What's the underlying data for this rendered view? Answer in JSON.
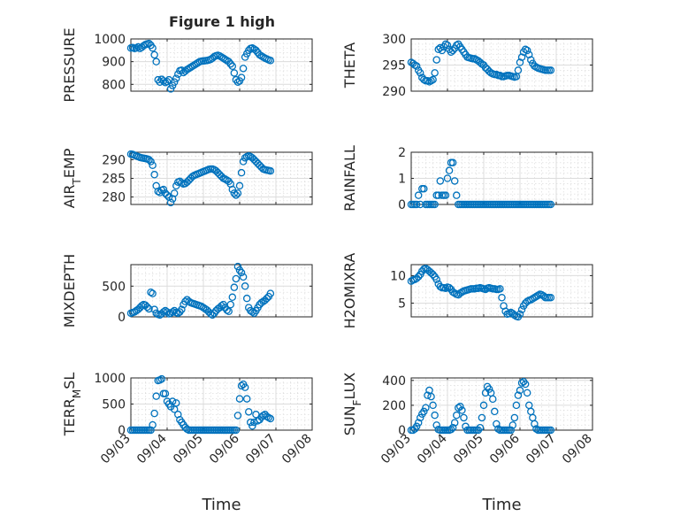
{
  "title": "Figure 1 high",
  "chart_data": [
    {
      "type": "scatter",
      "ylabel": "PRESSURE",
      "ylim": [
        770,
        1000
      ],
      "yticks": [
        800,
        900,
        1000
      ],
      "xlim": [
        0,
        5
      ],
      "grid": "major+minor",
      "marker": "circle",
      "x": [
        0.0,
        0.05,
        0.1,
        0.15,
        0.2,
        0.25,
        0.3,
        0.35,
        0.4,
        0.45,
        0.5,
        0.55,
        0.6,
        0.65,
        0.7,
        0.75,
        0.8,
        0.85,
        0.9,
        0.95,
        1.0,
        1.05,
        1.1,
        1.15,
        1.2,
        1.25,
        1.3,
        1.35,
        1.4,
        1.45,
        1.5,
        1.55,
        1.6,
        1.65,
        1.7,
        1.75,
        1.8,
        1.85,
        1.9,
        1.95,
        2.0,
        2.05,
        2.1,
        2.15,
        2.2,
        2.25,
        2.3,
        2.35,
        2.4,
        2.45,
        2.5,
        2.55,
        2.6,
        2.65,
        2.7,
        2.75,
        2.8,
        2.85,
        2.9,
        2.95,
        3.0,
        3.05,
        3.1,
        3.15,
        3.2,
        3.25,
        3.3,
        3.35,
        3.4,
        3.45,
        3.5,
        3.55,
        3.6,
        3.65,
        3.7,
        3.75,
        3.8,
        3.85
      ],
      "y": [
        960,
        962,
        958,
        960,
        965,
        958,
        963,
        970,
        975,
        978,
        980,
        972,
        960,
        930,
        900,
        820,
        810,
        822,
        815,
        808,
        812,
        820,
        780,
        795,
        810,
        826,
        845,
        860,
        862,
        852,
        858,
        865,
        870,
        875,
        880,
        885,
        890,
        895,
        900,
        902,
        903,
        904,
        905,
        907,
        910,
        915,
        922,
        926,
        928,
        925,
        920,
        915,
        910,
        905,
        900,
        890,
        880,
        850,
        820,
        810,
        815,
        830,
        870,
        920,
        935,
        950,
        958,
        960,
        955,
        950,
        940,
        930,
        925,
        920,
        915,
        912,
        908,
        905
      ]
    },
    {
      "type": "scatter",
      "ylabel": "THETA",
      "ylim": [
        290,
        300
      ],
      "yticks": [
        290,
        295,
        300
      ],
      "xlim": [
        0,
        5
      ],
      "grid": "major+minor",
      "marker": "circle",
      "x": [
        0.0,
        0.05,
        0.1,
        0.15,
        0.2,
        0.25,
        0.3,
        0.35,
        0.4,
        0.45,
        0.5,
        0.55,
        0.6,
        0.65,
        0.7,
        0.75,
        0.8,
        0.85,
        0.9,
        0.95,
        1.0,
        1.05,
        1.1,
        1.15,
        1.2,
        1.25,
        1.3,
        1.35,
        1.4,
        1.45,
        1.5,
        1.55,
        1.6,
        1.65,
        1.7,
        1.75,
        1.8,
        1.85,
        1.9,
        1.95,
        2.0,
        2.05,
        2.1,
        2.15,
        2.2,
        2.25,
        2.3,
        2.35,
        2.4,
        2.45,
        2.5,
        2.55,
        2.6,
        2.65,
        2.7,
        2.75,
        2.8,
        2.85,
        2.9,
        2.95,
        3.0,
        3.05,
        3.1,
        3.15,
        3.2,
        3.25,
        3.3,
        3.35,
        3.4,
        3.45,
        3.5,
        3.55,
        3.6,
        3.65,
        3.7,
        3.75,
        3.8,
        3.85
      ],
      "y": [
        295.5,
        295.3,
        295.0,
        294.8,
        294.0,
        293.5,
        292.6,
        292.2,
        292.0,
        292.0,
        291.8,
        292.0,
        292.2,
        293.5,
        296.0,
        298.0,
        298.3,
        297.8,
        298.5,
        299.0,
        298.8,
        298.0,
        297.5,
        297.8,
        298.2,
        298.8,
        299.0,
        298.5,
        298.0,
        297.5,
        297.0,
        296.5,
        296.4,
        296.3,
        296.2,
        296.2,
        296.0,
        295.8,
        295.5,
        295.2,
        295.0,
        294.5,
        294.2,
        293.8,
        293.5,
        293.3,
        293.2,
        293.2,
        293.0,
        293.0,
        292.8,
        292.8,
        292.9,
        293.0,
        293.0,
        292.9,
        292.8,
        292.7,
        292.8,
        294.0,
        295.5,
        296.5,
        297.5,
        298.0,
        297.8,
        297.0,
        296.0,
        295.3,
        294.8,
        294.6,
        294.4,
        294.3,
        294.2,
        294.1,
        294.0,
        294.0,
        294.0,
        294.0
      ]
    },
    {
      "type": "scatter",
      "ylabel_main": "AIR",
      "ylabel_sub": "T",
      "ylabel_rest": "EMP",
      "ylim": [
        278,
        292
      ],
      "yticks": [
        280,
        285,
        290
      ],
      "xlim": [
        0,
        5
      ],
      "grid": "major+minor",
      "marker": "circle",
      "x": [
        0.0,
        0.05,
        0.1,
        0.15,
        0.2,
        0.25,
        0.3,
        0.35,
        0.4,
        0.45,
        0.5,
        0.55,
        0.6,
        0.65,
        0.7,
        0.75,
        0.8,
        0.85,
        0.9,
        0.95,
        1.0,
        1.05,
        1.1,
        1.15,
        1.2,
        1.25,
        1.3,
        1.35,
        1.4,
        1.45,
        1.5,
        1.55,
        1.6,
        1.65,
        1.7,
        1.75,
        1.8,
        1.85,
        1.9,
        1.95,
        2.0,
        2.05,
        2.1,
        2.15,
        2.2,
        2.25,
        2.3,
        2.35,
        2.4,
        2.45,
        2.5,
        2.55,
        2.6,
        2.65,
        2.7,
        2.75,
        2.8,
        2.85,
        2.9,
        2.95,
        3.0,
        3.05,
        3.1,
        3.15,
        3.2,
        3.25,
        3.3,
        3.35,
        3.4,
        3.45,
        3.5,
        3.55,
        3.6,
        3.65,
        3.7,
        3.75,
        3.8,
        3.85
      ],
      "y": [
        291.5,
        291.4,
        291.2,
        291.0,
        290.8,
        290.6,
        290.5,
        290.4,
        290.3,
        290.2,
        290.0,
        289.5,
        288.5,
        286.0,
        283.0,
        281.5,
        281.2,
        281.8,
        282.0,
        281.0,
        280.5,
        280.0,
        278.5,
        279.5,
        281.0,
        283.0,
        284.0,
        284.2,
        283.8,
        283.5,
        283.6,
        284.0,
        284.5,
        285.0,
        285.5,
        285.8,
        286.0,
        286.2,
        286.4,
        286.6,
        286.8,
        287.0,
        287.2,
        287.4,
        287.5,
        287.5,
        287.3,
        287.0,
        286.5,
        286.0,
        285.5,
        285.0,
        284.8,
        284.5,
        284.2,
        283.5,
        282.0,
        281.0,
        280.5,
        281.0,
        283.0,
        286.5,
        289.5,
        290.5,
        290.8,
        291.0,
        290.8,
        290.5,
        290.0,
        289.5,
        289.0,
        288.5,
        288.0,
        287.5,
        287.3,
        287.2,
        287.1,
        287.0
      ]
    },
    {
      "type": "scatter",
      "ylabel": "RAINFALL",
      "ylim": [
        0,
        2
      ],
      "yticks": [
        0,
        1,
        2
      ],
      "xlim": [
        0,
        5
      ],
      "grid": "major+minor",
      "marker": "circle",
      "x": [
        0.0,
        0.05,
        0.1,
        0.15,
        0.2,
        0.25,
        0.3,
        0.35,
        0.4,
        0.45,
        0.5,
        0.55,
        0.6,
        0.65,
        0.7,
        0.75,
        0.8,
        0.85,
        0.9,
        0.95,
        1.0,
        1.05,
        1.1,
        1.15,
        1.2,
        1.25,
        1.3,
        1.35,
        1.4,
        1.45,
        1.5,
        1.55,
        1.6,
        1.65,
        1.7,
        1.75,
        1.8,
        1.85,
        1.9,
        1.95,
        2.0,
        2.05,
        2.1,
        2.15,
        2.2,
        2.25,
        2.3,
        2.35,
        2.4,
        2.45,
        2.5,
        2.55,
        2.6,
        2.65,
        2.7,
        2.75,
        2.8,
        2.85,
        2.9,
        2.95,
        3.0,
        3.05,
        3.1,
        3.15,
        3.2,
        3.25,
        3.3,
        3.35,
        3.4,
        3.45,
        3.5,
        3.55,
        3.6,
        3.65,
        3.7,
        3.75,
        3.8,
        3.85
      ],
      "y": [
        0,
        0,
        0,
        0,
        0.35,
        0,
        0.6,
        0.6,
        0,
        0,
        0,
        0,
        0,
        0,
        0.35,
        0.35,
        0.9,
        0.35,
        0.35,
        0.35,
        1.0,
        1.3,
        1.6,
        1.6,
        0.9,
        0.35,
        0,
        0,
        0,
        0,
        0,
        0,
        0,
        0,
        0,
        0,
        0,
        0,
        0,
        0,
        0,
        0,
        0,
        0,
        0,
        0,
        0,
        0,
        0,
        0,
        0,
        0,
        0,
        0,
        0,
        0,
        0,
        0,
        0,
        0,
        0,
        0,
        0,
        0,
        0,
        0,
        0,
        0,
        0,
        0,
        0,
        0,
        0,
        0,
        0,
        0,
        0,
        0
      ]
    },
    {
      "type": "scatter",
      "ylabel": "MIXDEPTH",
      "ylim": [
        0,
        850
      ],
      "yticks": [
        0,
        500
      ],
      "xlim": [
        0,
        5
      ],
      "grid": "major+minor",
      "marker": "circle",
      "x": [
        0.0,
        0.05,
        0.1,
        0.15,
        0.2,
        0.25,
        0.3,
        0.35,
        0.4,
        0.45,
        0.5,
        0.55,
        0.6,
        0.65,
        0.7,
        0.75,
        0.8,
        0.85,
        0.9,
        0.95,
        1.0,
        1.05,
        1.1,
        1.15,
        1.2,
        1.25,
        1.3,
        1.35,
        1.4,
        1.45,
        1.5,
        1.55,
        1.6,
        1.65,
        1.7,
        1.75,
        1.8,
        1.85,
        1.9,
        1.95,
        2.0,
        2.05,
        2.1,
        2.15,
        2.2,
        2.25,
        2.3,
        2.35,
        2.4,
        2.45,
        2.5,
        2.55,
        2.6,
        2.65,
        2.7,
        2.75,
        2.8,
        2.85,
        2.9,
        2.95,
        3.0,
        3.05,
        3.1,
        3.15,
        3.2,
        3.25,
        3.3,
        3.35,
        3.4,
        3.45,
        3.5,
        3.55,
        3.6,
        3.65,
        3.7,
        3.75,
        3.8,
        3.85
      ],
      "y": [
        60,
        70,
        80,
        100,
        120,
        150,
        180,
        200,
        190,
        160,
        130,
        400,
        380,
        120,
        60,
        40,
        30,
        50,
        80,
        100,
        80,
        50,
        60,
        80,
        100,
        70,
        60,
        80,
        120,
        200,
        250,
        280,
        250,
        230,
        220,
        210,
        200,
        190,
        180,
        170,
        150,
        130,
        110,
        80,
        50,
        30,
        60,
        100,
        130,
        150,
        180,
        200,
        150,
        110,
        90,
        200,
        320,
        480,
        620,
        820,
        760,
        720,
        650,
        500,
        300,
        150,
        100,
        80,
        60,
        100,
        150,
        200,
        230,
        250,
        270,
        300,
        330,
        380
      ]
    },
    {
      "type": "scatter",
      "ylabel": "H2OMIXRA",
      "ylim": [
        2.5,
        12
      ],
      "yticks": [
        5,
        10
      ],
      "xlim": [
        0,
        5
      ],
      "grid": "major+minor",
      "marker": "circle",
      "x": [
        0.0,
        0.05,
        0.1,
        0.15,
        0.2,
        0.25,
        0.3,
        0.35,
        0.4,
        0.45,
        0.5,
        0.55,
        0.6,
        0.65,
        0.7,
        0.75,
        0.8,
        0.85,
        0.9,
        0.95,
        1.0,
        1.05,
        1.1,
        1.15,
        1.2,
        1.25,
        1.3,
        1.35,
        1.4,
        1.45,
        1.5,
        1.55,
        1.6,
        1.65,
        1.7,
        1.75,
        1.8,
        1.85,
        1.9,
        1.95,
        2.0,
        2.05,
        2.1,
        2.15,
        2.2,
        2.25,
        2.3,
        2.35,
        2.4,
        2.45,
        2.5,
        2.55,
        2.6,
        2.65,
        2.7,
        2.75,
        2.8,
        2.85,
        2.9,
        2.95,
        3.0,
        3.05,
        3.1,
        3.15,
        3.2,
        3.25,
        3.3,
        3.35,
        3.4,
        3.45,
        3.5,
        3.55,
        3.6,
        3.65,
        3.7,
        3.75,
        3.8,
        3.85
      ],
      "y": [
        9.0,
        9.2,
        9.3,
        9.5,
        9.8,
        10.2,
        10.8,
        11.2,
        11.3,
        11.1,
        10.8,
        10.5,
        10.2,
        9.8,
        9.3,
        8.5,
        8.0,
        7.8,
        7.8,
        7.7,
        7.9,
        7.8,
        7.5,
        7.0,
        6.8,
        6.6,
        6.5,
        6.8,
        7.0,
        7.2,
        7.3,
        7.4,
        7.5,
        7.6,
        7.6,
        7.6,
        7.7,
        7.7,
        7.8,
        7.7,
        7.6,
        7.5,
        7.7,
        7.8,
        7.7,
        7.6,
        7.6,
        7.5,
        7.5,
        7.6,
        6.0,
        4.5,
        3.5,
        3.0,
        3.1,
        3.3,
        3.1,
        2.8,
        2.6,
        2.5,
        3.0,
        3.8,
        4.5,
        5.0,
        5.3,
        5.5,
        5.6,
        5.8,
        6.0,
        6.2,
        6.4,
        6.6,
        6.5,
        6.3,
        6.0,
        6.0,
        6.0,
        6.0
      ]
    },
    {
      "type": "scatter",
      "ylabel_main": "TERR",
      "ylabel_sub": "M",
      "ylabel_rest": "SL",
      "ylim": [
        0,
        1000
      ],
      "yticks": [
        0,
        500,
        1000
      ],
      "xlim": [
        0,
        5
      ],
      "grid": "major+minor",
      "marker": "circle",
      "x": [
        0.0,
        0.05,
        0.1,
        0.15,
        0.2,
        0.25,
        0.3,
        0.35,
        0.4,
        0.45,
        0.5,
        0.55,
        0.6,
        0.65,
        0.7,
        0.75,
        0.8,
        0.85,
        0.9,
        0.95,
        1.0,
        1.05,
        1.1,
        1.15,
        1.2,
        1.25,
        1.3,
        1.35,
        1.4,
        1.45,
        1.5,
        1.55,
        1.6,
        1.65,
        1.7,
        1.75,
        1.8,
        1.85,
        1.9,
        1.95,
        2.0,
        2.05,
        2.1,
        2.15,
        2.2,
        2.25,
        2.3,
        2.35,
        2.4,
        2.45,
        2.5,
        2.55,
        2.6,
        2.65,
        2.7,
        2.75,
        2.8,
        2.85,
        2.9,
        2.95,
        3.0,
        3.05,
        3.1,
        3.15,
        3.2,
        3.25,
        3.3,
        3.35,
        3.4,
        3.45,
        3.5,
        3.55,
        3.6,
        3.65,
        3.7,
        3.75,
        3.8,
        3.85
      ],
      "y": [
        0,
        0,
        0,
        0,
        0,
        0,
        0,
        0,
        0,
        0,
        0,
        0,
        100,
        320,
        650,
        950,
        960,
        980,
        700,
        700,
        550,
        500,
        450,
        550,
        400,
        520,
        300,
        200,
        150,
        100,
        50,
        20,
        0,
        0,
        0,
        0,
        0,
        0,
        0,
        0,
        0,
        0,
        0,
        0,
        0,
        0,
        0,
        0,
        0,
        0,
        0,
        0,
        0,
        0,
        0,
        0,
        0,
        0,
        0,
        280,
        600,
        850,
        880,
        820,
        600,
        350,
        150,
        80,
        150,
        300,
        180,
        200,
        250,
        280,
        300,
        260,
        240,
        220
      ]
    },
    {
      "type": "scatter",
      "ylabel_main": "SUN",
      "ylabel_sub": "F",
      "ylabel_rest": "LUX",
      "ylim": [
        0,
        420
      ],
      "yticks": [
        0,
        200,
        400
      ],
      "xlim": [
        0,
        5
      ],
      "grid": "major+minor",
      "marker": "circle",
      "x": [
        0.0,
        0.05,
        0.1,
        0.15,
        0.2,
        0.25,
        0.3,
        0.35,
        0.4,
        0.45,
        0.5,
        0.55,
        0.6,
        0.65,
        0.7,
        0.75,
        0.8,
        0.85,
        0.9,
        0.95,
        1.0,
        1.05,
        1.1,
        1.15,
        1.2,
        1.25,
        1.3,
        1.35,
        1.4,
        1.45,
        1.5,
        1.55,
        1.6,
        1.65,
        1.7,
        1.75,
        1.8,
        1.85,
        1.9,
        1.95,
        2.0,
        2.05,
        2.1,
        2.15,
        2.2,
        2.25,
        2.3,
        2.35,
        2.4,
        2.45,
        2.5,
        2.55,
        2.6,
        2.65,
        2.7,
        2.75,
        2.8,
        2.85,
        2.9,
        2.95,
        3.0,
        3.05,
        3.1,
        3.15,
        3.2,
        3.25,
        3.3,
        3.35,
        3.4,
        3.45,
        3.5,
        3.55,
        3.6,
        3.65,
        3.7,
        3.75,
        3.8,
        3.85
      ],
      "y": [
        0,
        0,
        10,
        30,
        60,
        100,
        130,
        150,
        180,
        280,
        320,
        270,
        200,
        120,
        40,
        5,
        0,
        0,
        0,
        0,
        0,
        0,
        5,
        20,
        60,
        120,
        180,
        190,
        160,
        100,
        30,
        0,
        0,
        0,
        0,
        0,
        0,
        0,
        20,
        100,
        200,
        300,
        350,
        330,
        300,
        250,
        150,
        50,
        10,
        0,
        0,
        0,
        0,
        0,
        0,
        0,
        40,
        100,
        200,
        280,
        320,
        380,
        390,
        370,
        300,
        200,
        150,
        100,
        50,
        10,
        0,
        0,
        0,
        0,
        0,
        0,
        0,
        0
      ]
    }
  ],
  "xticklabels": [
    "09/03",
    "09/04",
    "09/05",
    "09/06",
    "09/07",
    "09/08"
  ],
  "xlabel": "Time",
  "marker_color": "#0072bd"
}
